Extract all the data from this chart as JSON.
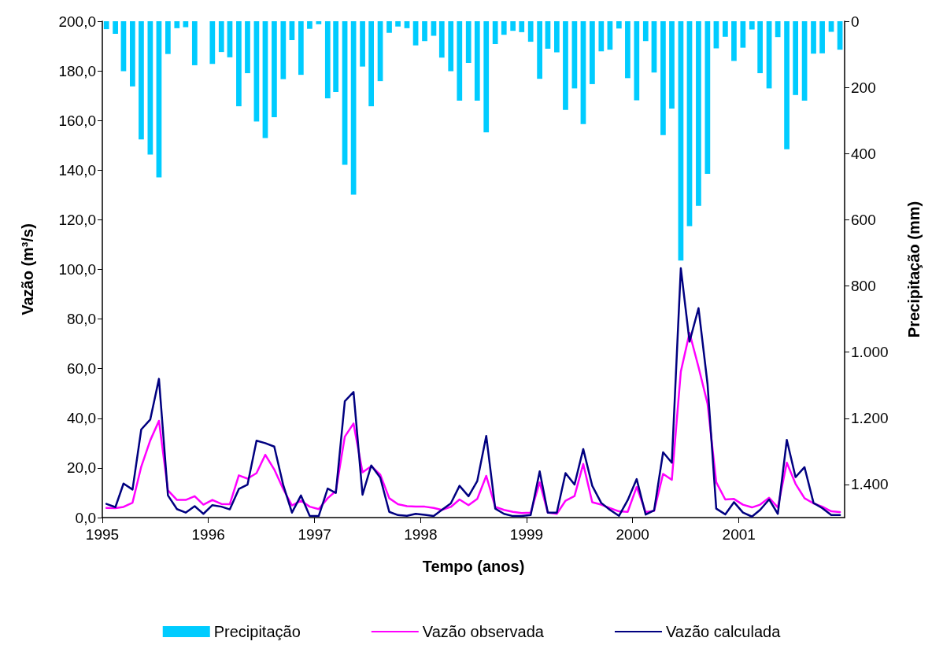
{
  "chart_data": {
    "type": "bar",
    "xlabel": "Tempo (anos)",
    "ylabel": "Vazão (m³/s)",
    "y2label": "Precipitação (mm)",
    "x": [
      "1995-01-15",
      "1995-02-15",
      "1995-03-15",
      "1995-04-15",
      "1995-05-15",
      "1995-06-15",
      "1995-07-15",
      "1995-08-15",
      "1995-09-15",
      "1995-10-15",
      "1995-11-15",
      "1995-12-15",
      "1996-01-15",
      "1996-02-15",
      "1996-03-15",
      "1996-04-15",
      "1996-05-15",
      "1996-06-15",
      "1996-07-15",
      "1996-08-15",
      "1996-09-15",
      "1996-10-15",
      "1996-11-15",
      "1996-12-15",
      "1997-01-15",
      "1997-02-15",
      "1997-03-15",
      "1997-04-15",
      "1997-05-15",
      "1997-06-15",
      "1997-07-15",
      "1997-08-15",
      "1997-09-15",
      "1997-10-15",
      "1997-11-15",
      "1997-12-15",
      "1998-01-15",
      "1998-02-15",
      "1998-03-15",
      "1998-04-15",
      "1998-05-15",
      "1998-06-15",
      "1998-07-15",
      "1998-08-15",
      "1998-09-15",
      "1998-10-15",
      "1998-11-15",
      "1998-12-15",
      "1999-01-15",
      "1999-02-15",
      "1999-03-15",
      "1999-04-15",
      "1999-05-15",
      "1999-06-15",
      "1999-07-15",
      "1999-08-15",
      "1999-09-15",
      "1999-10-15",
      "1999-11-15",
      "1999-12-15",
      "2000-01-15",
      "2000-02-15",
      "2000-03-15",
      "2000-04-15",
      "2000-05-15",
      "2000-06-15",
      "2000-07-15",
      "2000-08-15",
      "2000-09-15",
      "2000-10-15",
      "2000-11-15",
      "2000-12-15",
      "2001-01-15",
      "2001-02-15",
      "2001-03-15",
      "2001-04-15",
      "2001-05-15",
      "2001-06-15",
      "2001-07-15",
      "2001-08-15",
      "2001-09-15",
      "2001-10-15",
      "2001-11-15",
      "2001-12-15"
    ],
    "series": [
      {
        "name": "Precipitação",
        "axis": "y2",
        "color": "#00ccff",
        "values": [
          24,
          38,
          151,
          197,
          357,
          403,
          472,
          99,
          21,
          18,
          133,
          0,
          129,
          93,
          109,
          257,
          157,
          303,
          353,
          290,
          175,
          57,
          162,
          23,
          9,
          233,
          214,
          434,
          524,
          137,
          257,
          181,
          35,
          16,
          21,
          73,
          60,
          44,
          110,
          151,
          240,
          126,
          240,
          336,
          69,
          41,
          29,
          33,
          62,
          174,
          83,
          94,
          268,
          203,
          311,
          190,
          91,
          86,
          22,
          172,
          239,
          60,
          155,
          344,
          264,
          723,
          619,
          558,
          461,
          82,
          47,
          120,
          80,
          25,
          157,
          203,
          48,
          387,
          223,
          240,
          98,
          97,
          32,
          86
        ]
      },
      {
        "name": "Vazão observada",
        "type": "line",
        "color": "#ff00ff",
        "values": [
          3.9,
          3.8,
          4.3,
          6.0,
          20.5,
          31.1,
          39.0,
          11.0,
          7.1,
          7.1,
          8.6,
          5.2,
          7.1,
          5.5,
          5.4,
          17.0,
          15.7,
          17.9,
          25.3,
          19.4,
          11.5,
          4.9,
          6.8,
          4.4,
          3.4,
          7.8,
          10.7,
          32.6,
          37.9,
          18.2,
          20.7,
          17.3,
          7.8,
          5.4,
          4.6,
          4.4,
          4.4,
          3.9,
          3.1,
          4.3,
          7.3,
          5.0,
          7.5,
          16.8,
          4.3,
          3.1,
          2.3,
          1.8,
          2.0,
          14.2,
          2.0,
          1.5,
          6.8,
          8.7,
          21.6,
          6.2,
          5.2,
          3.8,
          2.5,
          2.3,
          12.3,
          2.2,
          2.7,
          17.6,
          15.2,
          58.8,
          74.4,
          60.6,
          45.9,
          14.2,
          7.3,
          7.5,
          5.2,
          4.1,
          5.2,
          8.0,
          4.1,
          22.1,
          13.6,
          7.8,
          5.7,
          4.4,
          2.5,
          2.2
        ]
      },
      {
        "name": "Vazão calculada",
        "type": "line",
        "color": "#000080",
        "values": [
          5.5,
          4.2,
          13.7,
          11.3,
          35.5,
          39.5,
          55.9,
          8.9,
          3.4,
          2.0,
          4.6,
          1.5,
          5.0,
          4.4,
          3.3,
          11.5,
          13.3,
          31.0,
          30.0,
          28.6,
          13.1,
          2.0,
          8.9,
          0.7,
          0.6,
          11.7,
          9.9,
          46.9,
          50.6,
          9.2,
          21.0,
          16.1,
          2.3,
          1.0,
          0.7,
          1.5,
          1.1,
          0.6,
          3.1,
          5.7,
          12.8,
          8.6,
          14.7,
          32.9,
          3.6,
          1.5,
          0.6,
          0.6,
          1.0,
          18.6,
          2.0,
          2.0,
          17.9,
          13.3,
          27.6,
          12.8,
          5.9,
          3.1,
          0.7,
          7.0,
          15.5,
          1.2,
          2.9,
          26.3,
          22.1,
          100.5,
          70.9,
          84.4,
          53.8,
          3.6,
          1.3,
          6.2,
          2.0,
          0.4,
          3.1,
          7.3,
          1.5,
          31.3,
          16.3,
          20.3,
          5.9,
          3.8,
          1.0,
          1.0
        ]
      }
    ],
    "xlim": [
      "1995-01-01",
      "2001-12-31"
    ],
    "xticks": [
      {
        "value": "1995-01-01",
        "label": "1995"
      },
      {
        "value": "1996-01-01",
        "label": "1996"
      },
      {
        "value": "1997-01-01",
        "label": "1997"
      },
      {
        "value": "1998-01-01",
        "label": "1998"
      },
      {
        "value": "1999-01-01",
        "label": "1999"
      },
      {
        "value": "2000-01-01",
        "label": "2000"
      },
      {
        "value": "2001-01-01",
        "label": "2001"
      }
    ],
    "ylim": [
      0,
      200
    ],
    "yticks": [
      {
        "value": 0,
        "label": "0,0"
      },
      {
        "value": 20,
        "label": "20,0"
      },
      {
        "value": 40,
        "label": "40,0"
      },
      {
        "value": 60,
        "label": "60,0"
      },
      {
        "value": 80,
        "label": "80,0"
      },
      {
        "value": 100,
        "label": "100,0"
      },
      {
        "value": 120,
        "label": "120,0"
      },
      {
        "value": 140,
        "label": "140,0"
      },
      {
        "value": 160,
        "label": "160,0"
      },
      {
        "value": 180,
        "label": "180,0"
      },
      {
        "value": 200,
        "label": "200,0"
      }
    ],
    "y2lim": [
      1500,
      0
    ],
    "y2ticks": [
      0,
      200,
      400,
      600,
      800,
      {
        "value": 1000,
        "label": "1.000"
      },
      {
        "value": 1200,
        "label": "1.200"
      },
      {
        "value": 1400,
        "label": "1.400"
      }
    ],
    "grid": false,
    "legend": "bottom",
    "marker": "none",
    "line_style": "solid"
  }
}
